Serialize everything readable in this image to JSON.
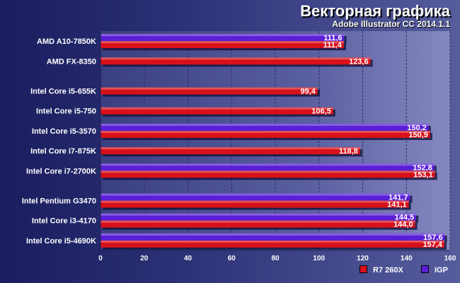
{
  "chart_data": {
    "type": "bar",
    "orientation": "horizontal",
    "title": "Векторная графика",
    "subtitle": "Adobe Illustrator CC 2014.1.1",
    "categories": [
      "AMD A10-7850K",
      "AMD FX-8350",
      "Intel Core i5-655K",
      "Intel Core i5-750",
      "Intel Core i5-3570",
      "Intel Core i7-875K",
      "Intel Core i7-2700K",
      "Intel Pentium G3470",
      "Intel Core i3-4170",
      "Intel Core i5-4690K"
    ],
    "groups": [
      [
        0,
        1
      ],
      [
        2,
        3,
        4,
        5,
        6
      ],
      [
        7,
        8,
        9
      ]
    ],
    "series": [
      {
        "name": "IGP",
        "color": "#5a1fd6",
        "values": [
          111.6,
          null,
          null,
          null,
          150.2,
          null,
          152.8,
          141.7,
          144.5,
          157.6
        ],
        "labels": [
          "111,6",
          "",
          "",
          "",
          "150,2",
          "",
          "152,8",
          "141,7",
          "144,5",
          "157,6"
        ]
      },
      {
        "name": "R7 260X",
        "color": "#d8101a",
        "values": [
          111.4,
          123.6,
          99.4,
          106.5,
          150.9,
          118.8,
          153.1,
          141.1,
          144.0,
          157.4
        ],
        "labels": [
          "111,4",
          "123,6",
          "99,4",
          "106,5",
          "150,9",
          "118,8",
          "153,1",
          "141,1",
          "144,0",
          "157,4"
        ]
      }
    ],
    "xlim": [
      0,
      160
    ],
    "xticks": [
      "0",
      "20",
      "40",
      "60",
      "80",
      "100",
      "120",
      "140",
      "160"
    ],
    "grid": true,
    "legend": {
      "position": "bottom-right",
      "items": [
        "R7 260X",
        "IGP"
      ]
    }
  }
}
